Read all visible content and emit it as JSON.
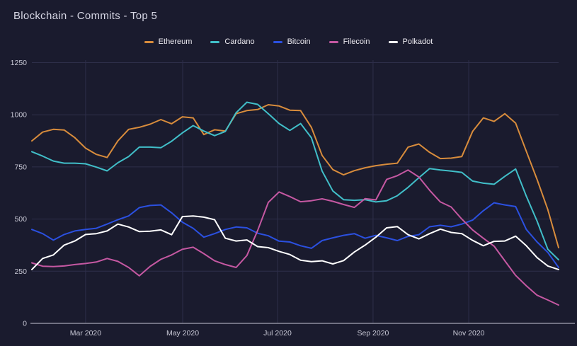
{
  "theme": {
    "background": "#1a1b2e",
    "title_color": "#d6d6e4",
    "grid_color": "#2e2f4a",
    "axis_line_color": "#8e8e9d",
    "tick_label_color": "#c9c9d6"
  },
  "chart_data": {
    "type": "line",
    "title": "Blockchain - Commits - Top 5",
    "xlabel": "",
    "ylabel": "",
    "ylim": [
      0,
      1250
    ],
    "yticks": [
      0,
      250,
      500,
      750,
      1000,
      1250
    ],
    "grid": {
      "horizontal": true,
      "vertical": true
    },
    "legend_position": "top",
    "x_unit": "week",
    "x_axis": {
      "tick_labels": [
        "Mar 2020",
        "May 2020",
        "Jul 2020",
        "Sep 2020",
        "Nov 2020"
      ],
      "tick_week_indices": [
        5.0,
        14.03,
        22.85,
        31.74,
        40.64
      ]
    },
    "series": [
      {
        "name": "Ethereum",
        "color": "#d88c3c",
        "values": [
          875,
          917,
          930,
          927,
          890,
          840,
          810,
          795,
          875,
          930,
          940,
          955,
          977,
          957,
          990,
          985,
          905,
          928,
          922,
          1005,
          1020,
          1025,
          1048,
          1042,
          1022,
          1020,
          940,
          805,
          737,
          712,
          732,
          746,
          756,
          763,
          768,
          845,
          860,
          820,
          790,
          792,
          800,
          920,
          985,
          968,
          1005,
          960,
          825,
          690,
          545,
          363
        ]
      },
      {
        "name": "Cardano",
        "color": "#41bfc9",
        "values": [
          823,
          802,
          778,
          768,
          768,
          765,
          749,
          731,
          770,
          800,
          845,
          845,
          842,
          873,
          913,
          948,
          922,
          900,
          920,
          1010,
          1060,
          1050,
          1005,
          958,
          925,
          958,
          890,
          730,
          635,
          593,
          590,
          593,
          582,
          588,
          612,
          652,
          698,
          742,
          735,
          730,
          724,
          682,
          672,
          667,
          705,
          740,
          610,
          490,
          355,
          305
        ]
      },
      {
        "name": "Bitcoin",
        "color": "#2b50e0",
        "values": [
          450,
          430,
          399,
          426,
          443,
          450,
          456,
          476,
          497,
          515,
          555,
          565,
          568,
          530,
          485,
          456,
          413,
          430,
          450,
          462,
          458,
          432,
          420,
          394,
          390,
          372,
          360,
          397,
          410,
          422,
          430,
          408,
          422,
          410,
          397,
          417,
          425,
          463,
          470,
          463,
          476,
          495,
          540,
          578,
          568,
          560,
          450,
          390,
          340,
          268
        ]
      },
      {
        "name": "Filecoin",
        "color": "#c558a2",
        "values": [
          290,
          274,
          272,
          275,
          282,
          287,
          294,
          311,
          297,
          268,
          228,
          273,
          307,
          328,
          355,
          365,
          334,
          300,
          282,
          268,
          325,
          445,
          580,
          630,
          608,
          583,
          588,
          597,
          585,
          570,
          556,
          598,
          592,
          690,
          708,
          735,
          702,
          638,
          582,
          558,
          500,
          448,
          408,
          370,
          300,
          230,
          180,
          135,
          112,
          88
        ]
      },
      {
        "name": "Polkadot",
        "color": "#ffffff",
        "values": [
          258,
          311,
          328,
          375,
          395,
          426,
          430,
          443,
          476,
          462,
          440,
          442,
          448,
          425,
          512,
          515,
          509,
          497,
          408,
          395,
          400,
          368,
          363,
          345,
          330,
          303,
          296,
          300,
          285,
          301,
          342,
          375,
          413,
          458,
          464,
          425,
          405,
          430,
          452,
          436,
          430,
          398,
          372,
          393,
          395,
          418,
          372,
          315,
          275,
          258
        ]
      }
    ]
  }
}
